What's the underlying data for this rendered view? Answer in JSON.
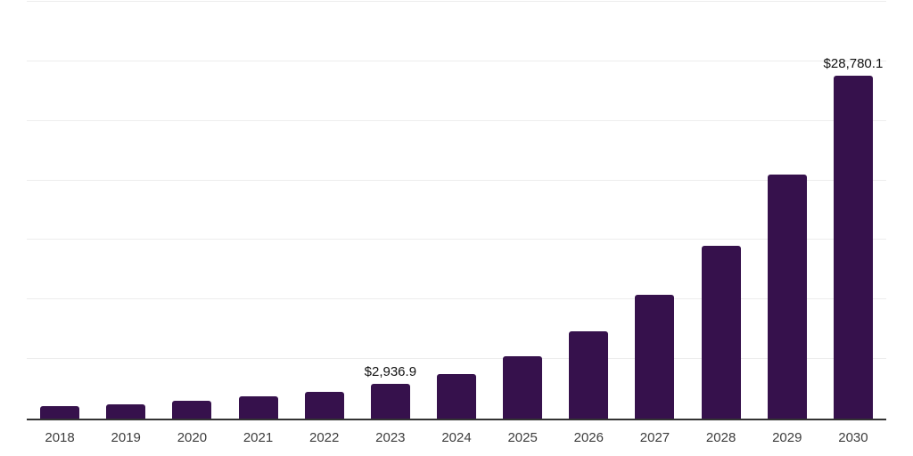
{
  "chart_data": {
    "type": "bar",
    "title": "",
    "xlabel": "",
    "ylabel": "",
    "categories": [
      "2018",
      "2019",
      "2020",
      "2021",
      "2022",
      "2023",
      "2024",
      "2025",
      "2026",
      "2027",
      "2028",
      "2029",
      "2030"
    ],
    "values": [
      1030,
      1230,
      1520,
      1880,
      2260,
      2936.9,
      3730,
      5270,
      7330,
      10370,
      14500,
      20470,
      28780.1
    ],
    "data_labels": {
      "2023": "$2,936.9",
      "2030": "$28,780.1"
    },
    "ylim": [
      0,
      35000
    ],
    "y_gridline_interval": 5000,
    "grid": true,
    "y_tick_labels_visible": false,
    "legend_position": "none",
    "colors": {
      "bar": "#36114c",
      "gridline": "#ededed",
      "axis_line": "#333333",
      "x_tick_label": "#3d3d3d",
      "value_label": "#111111",
      "background": "#ffffff"
    }
  }
}
